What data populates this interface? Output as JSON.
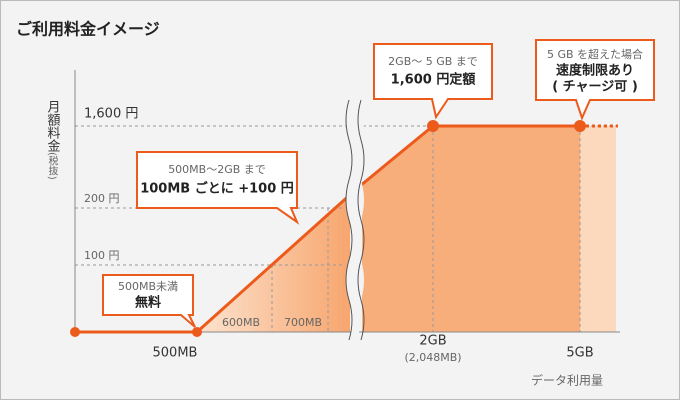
{
  "title": "ご利用料金イメージ",
  "y_axis": {
    "label": "月額料金",
    "note": "(税抜)",
    "ticks": [
      "1,600 円",
      "200 円",
      "100 円"
    ]
  },
  "x_axis": {
    "label": "データ利用量",
    "ticks": [
      "500MB",
      "600MB",
      "700MB",
      "2GB",
      "(2,048MB)",
      "5GB"
    ]
  },
  "callouts": [
    {
      "lines": [
        "500MB未満",
        "無料"
      ]
    },
    {
      "lines": [
        "500MB～2GB まで",
        "100MB ごとに +100 円"
      ]
    },
    {
      "lines": [
        "2GB～ 5 GB まで",
        "1,600 円定額"
      ]
    },
    {
      "lines": [
        "5 GB を超えた場合",
        "速度制限あり",
        "( チャージ可 )"
      ]
    }
  ]
}
